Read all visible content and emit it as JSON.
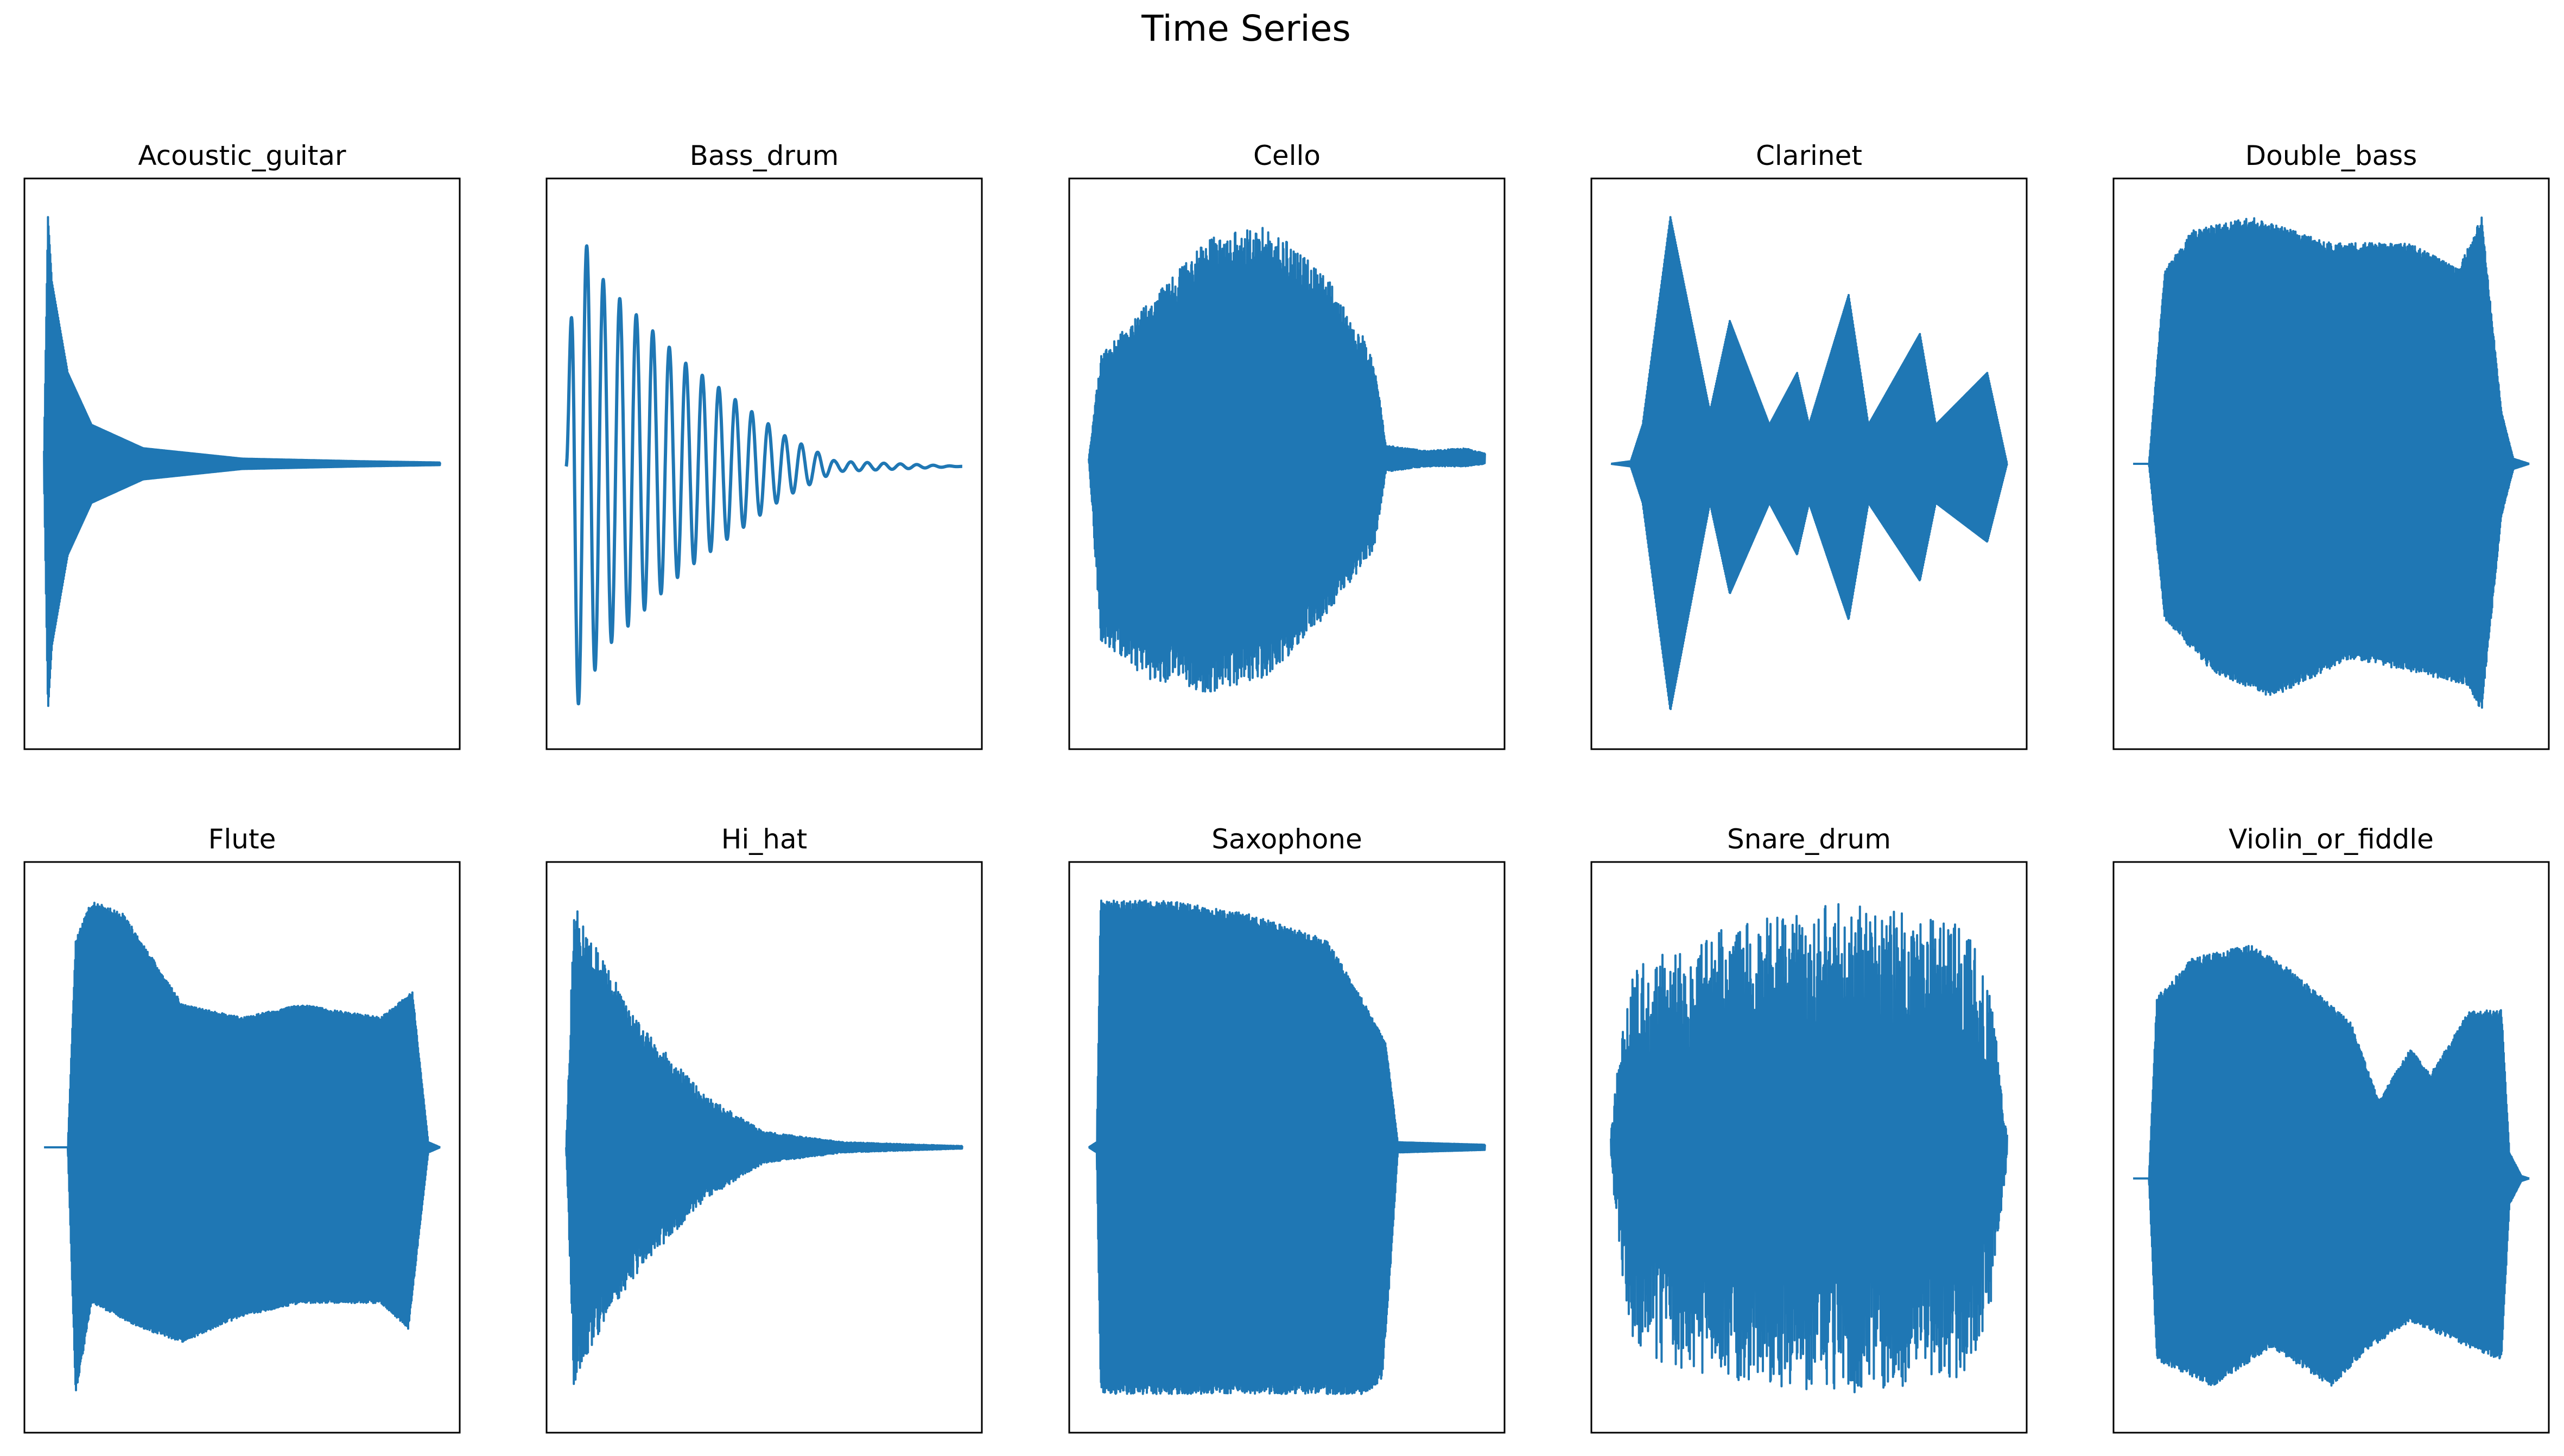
{
  "chart_data": {
    "type": "line",
    "title": "Time Series",
    "grid": false,
    "axes_ticks": "hidden",
    "line_color": "#1f77b4",
    "subplots": [
      {
        "title": "Acoustic_guitar",
        "shape": "pluck",
        "baseline": 0.0,
        "noise": 0.0,
        "upper": [
          [
            0,
            0.05
          ],
          [
            0.01,
            0.95
          ],
          [
            0.02,
            0.7
          ],
          [
            0.06,
            0.35
          ],
          [
            0.12,
            0.15
          ],
          [
            0.25,
            0.06
          ],
          [
            0.5,
            0.02
          ],
          [
            0.8,
            0.01
          ],
          [
            1,
            0.005
          ]
        ],
        "lower": [
          [
            0,
            0.05
          ],
          [
            0.01,
            0.95
          ],
          [
            0.02,
            0.7
          ],
          [
            0.06,
            0.35
          ],
          [
            0.12,
            0.15
          ],
          [
            0.25,
            0.06
          ],
          [
            0.5,
            0.02
          ],
          [
            0.8,
            0.01
          ],
          [
            1,
            0.005
          ]
        ]
      },
      {
        "title": "Bass_drum",
        "shape": "ringing",
        "baseline": -0.01,
        "noise": 0.0,
        "upper": [
          [
            0,
            0.0
          ],
          [
            0.02,
            0.95
          ],
          [
            0.1,
            0.7
          ],
          [
            0.3,
            0.4
          ],
          [
            0.55,
            0.12
          ],
          [
            0.68,
            0.02
          ],
          [
            1,
            0.0
          ]
        ],
        "lower": [
          [
            0,
            0.0
          ],
          [
            0.02,
            0.95
          ],
          [
            0.1,
            0.7
          ],
          [
            0.3,
            0.4
          ],
          [
            0.55,
            0.12
          ],
          [
            0.68,
            0.02
          ],
          [
            1,
            0.0
          ]
        ]
      },
      {
        "title": "Cello",
        "shape": "spiky",
        "baseline": 0.02,
        "noise": 0.2,
        "upper": [
          [
            0,
            0.0
          ],
          [
            0.03,
            0.4
          ],
          [
            0.15,
            0.6
          ],
          [
            0.3,
            0.85
          ],
          [
            0.45,
            0.9
          ],
          [
            0.6,
            0.7
          ],
          [
            0.72,
            0.4
          ],
          [
            0.75,
            0.05
          ],
          [
            0.85,
            0.03
          ],
          [
            0.95,
            0.04
          ],
          [
            1,
            0.02
          ]
        ],
        "lower": [
          [
            0,
            0.0
          ],
          [
            0.03,
            0.7
          ],
          [
            0.15,
            0.85
          ],
          [
            0.3,
            0.9
          ],
          [
            0.45,
            0.85
          ],
          [
            0.6,
            0.6
          ],
          [
            0.72,
            0.35
          ],
          [
            0.75,
            0.05
          ],
          [
            0.85,
            0.03
          ],
          [
            0.95,
            0.03
          ],
          [
            1,
            0.02
          ]
        ]
      },
      {
        "title": "Clarinet",
        "shape": "pulses",
        "baseline": 0.0,
        "noise": 0.0,
        "upper": [
          [
            0,
            0.0
          ],
          [
            0.05,
            0.01
          ],
          [
            0.08,
            0.15
          ],
          [
            0.15,
            0.95
          ],
          [
            0.25,
            0.2
          ],
          [
            0.3,
            0.55
          ],
          [
            0.4,
            0.15
          ],
          [
            0.47,
            0.35
          ],
          [
            0.5,
            0.15
          ],
          [
            0.6,
            0.65
          ],
          [
            0.65,
            0.15
          ],
          [
            0.78,
            0.5
          ],
          [
            0.82,
            0.15
          ],
          [
            0.95,
            0.35
          ],
          [
            1,
            0.0
          ]
        ],
        "lower": [
          [
            0,
            0.0
          ],
          [
            0.05,
            0.01
          ],
          [
            0.08,
            0.15
          ],
          [
            0.15,
            0.95
          ],
          [
            0.25,
            0.15
          ],
          [
            0.3,
            0.5
          ],
          [
            0.4,
            0.15
          ],
          [
            0.47,
            0.35
          ],
          [
            0.5,
            0.15
          ],
          [
            0.6,
            0.6
          ],
          [
            0.65,
            0.15
          ],
          [
            0.78,
            0.45
          ],
          [
            0.82,
            0.15
          ],
          [
            0.95,
            0.3
          ],
          [
            1,
            0.0
          ]
        ]
      },
      {
        "title": "Double_bass",
        "shape": "sustain",
        "baseline": 0.0,
        "noise": 0.05,
        "upper": [
          [
            0,
            0.0
          ],
          [
            0.04,
            0.0
          ],
          [
            0.08,
            0.75
          ],
          [
            0.15,
            0.9
          ],
          [
            0.3,
            0.95
          ],
          [
            0.5,
            0.85
          ],
          [
            0.7,
            0.85
          ],
          [
            0.82,
            0.75
          ],
          [
            0.88,
            0.95
          ],
          [
            0.93,
            0.2
          ],
          [
            0.96,
            0.02
          ],
          [
            1,
            0.0
          ]
        ],
        "lower": [
          [
            0,
            0.0
          ],
          [
            0.04,
            0.0
          ],
          [
            0.08,
            0.6
          ],
          [
            0.2,
            0.8
          ],
          [
            0.35,
            0.9
          ],
          [
            0.55,
            0.75
          ],
          [
            0.7,
            0.8
          ],
          [
            0.84,
            0.85
          ],
          [
            0.88,
            0.95
          ],
          [
            0.93,
            0.2
          ],
          [
            0.96,
            0.02
          ],
          [
            1,
            0.0
          ]
        ]
      },
      {
        "title": "Flute",
        "shape": "sustain",
        "baseline": 0.0,
        "noise": 0.03,
        "upper": [
          [
            0,
            0.0
          ],
          [
            0.06,
            0.0
          ],
          [
            0.08,
            0.8
          ],
          [
            0.12,
            0.95
          ],
          [
            0.2,
            0.9
          ],
          [
            0.35,
            0.55
          ],
          [
            0.5,
            0.5
          ],
          [
            0.65,
            0.55
          ],
          [
            0.85,
            0.5
          ],
          [
            0.93,
            0.6
          ],
          [
            0.97,
            0.02
          ],
          [
            1,
            0.0
          ]
        ],
        "lower": [
          [
            0,
            0.0
          ],
          [
            0.06,
            0.0
          ],
          [
            0.08,
            0.95
          ],
          [
            0.12,
            0.6
          ],
          [
            0.25,
            0.7
          ],
          [
            0.35,
            0.75
          ],
          [
            0.5,
            0.65
          ],
          [
            0.65,
            0.6
          ],
          [
            0.85,
            0.6
          ],
          [
            0.92,
            0.7
          ],
          [
            0.97,
            0.02
          ],
          [
            1,
            0.0
          ]
        ]
      },
      {
        "title": "Hi_hat",
        "shape": "decay",
        "baseline": 0.0,
        "noise": 0.25,
        "upper": [
          [
            0,
            0.0
          ],
          [
            0.02,
            0.95
          ],
          [
            0.1,
            0.7
          ],
          [
            0.2,
            0.45
          ],
          [
            0.35,
            0.2
          ],
          [
            0.5,
            0.06
          ],
          [
            0.7,
            0.02
          ],
          [
            1,
            0.005
          ]
        ],
        "lower": [
          [
            0,
            0.0
          ],
          [
            0.02,
            0.95
          ],
          [
            0.1,
            0.65
          ],
          [
            0.2,
            0.45
          ],
          [
            0.35,
            0.2
          ],
          [
            0.5,
            0.06
          ],
          [
            0.7,
            0.02
          ],
          [
            1,
            0.005
          ]
        ]
      },
      {
        "title": "Saxophone",
        "shape": "sustain",
        "baseline": 0.0,
        "noise": 0.05,
        "upper": [
          [
            0,
            0.0
          ],
          [
            0.02,
            0.02
          ],
          [
            0.03,
            0.95
          ],
          [
            0.2,
            0.95
          ],
          [
            0.4,
            0.9
          ],
          [
            0.6,
            0.8
          ],
          [
            0.7,
            0.55
          ],
          [
            0.75,
            0.4
          ],
          [
            0.78,
            0.02
          ],
          [
            1,
            0.01
          ]
        ],
        "lower": [
          [
            0,
            0.0
          ],
          [
            0.02,
            0.02
          ],
          [
            0.03,
            0.95
          ],
          [
            0.2,
            0.95
          ],
          [
            0.4,
            0.95
          ],
          [
            0.6,
            0.95
          ],
          [
            0.7,
            0.95
          ],
          [
            0.74,
            0.9
          ],
          [
            0.76,
            0.5
          ],
          [
            0.78,
            0.02
          ],
          [
            1,
            0.01
          ]
        ]
      },
      {
        "title": "Snare_drum",
        "shape": "burst",
        "baseline": 0.0,
        "noise": 0.6,
        "upper": [
          [
            0,
            0.05
          ],
          [
            0.02,
            0.4
          ],
          [
            0.06,
            0.7
          ],
          [
            0.3,
            0.85
          ],
          [
            0.6,
            0.95
          ],
          [
            0.9,
            0.85
          ],
          [
            0.96,
            0.6
          ],
          [
            1,
            0.05
          ]
        ],
        "lower": [
          [
            0,
            0.05
          ],
          [
            0.02,
            0.4
          ],
          [
            0.06,
            0.8
          ],
          [
            0.3,
            0.9
          ],
          [
            0.6,
            0.95
          ],
          [
            0.9,
            0.9
          ],
          [
            0.96,
            0.6
          ],
          [
            1,
            0.05
          ]
        ]
      },
      {
        "title": "Violin_or_fiddle",
        "shape": "sustain",
        "baseline": -0.12,
        "noise": 0.05,
        "upper": [
          [
            0,
            0.0
          ],
          [
            0.04,
            0.0
          ],
          [
            0.06,
            0.7
          ],
          [
            0.15,
            0.85
          ],
          [
            0.3,
            0.9
          ],
          [
            0.4,
            0.8
          ],
          [
            0.55,
            0.6
          ],
          [
            0.62,
            0.3
          ],
          [
            0.7,
            0.5
          ],
          [
            0.75,
            0.4
          ],
          [
            0.85,
            0.65
          ],
          [
            0.93,
            0.65
          ],
          [
            0.95,
            0.1
          ],
          [
            0.98,
            0.01
          ],
          [
            1,
            0.0
          ]
        ],
        "lower": [
          [
            0,
            0.0
          ],
          [
            0.04,
            0.0
          ],
          [
            0.06,
            0.7
          ],
          [
            0.2,
            0.8
          ],
          [
            0.35,
            0.65
          ],
          [
            0.5,
            0.8
          ],
          [
            0.6,
            0.65
          ],
          [
            0.7,
            0.55
          ],
          [
            0.85,
            0.65
          ],
          [
            0.93,
            0.7
          ],
          [
            0.95,
            0.1
          ],
          [
            0.98,
            0.01
          ],
          [
            1,
            0.0
          ]
        ]
      }
    ]
  }
}
